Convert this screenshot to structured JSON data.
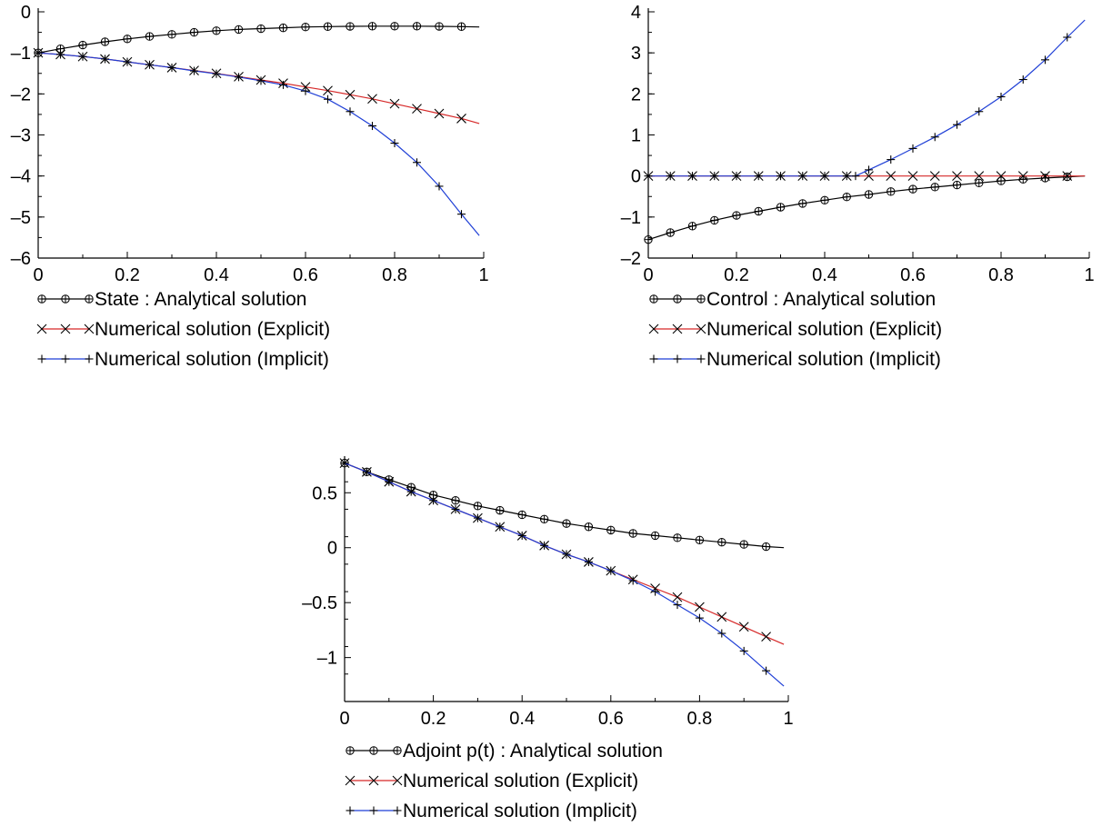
{
  "chart_data": [
    {
      "id": "state",
      "type": "line",
      "x_range": [
        0,
        1
      ],
      "y_range": [
        -6,
        0
      ],
      "x_ticks": [
        0,
        0.2,
        0.4,
        0.6,
        0.8,
        1
      ],
      "x_tick_labels": [
        "0",
        "0.2",
        "0.4",
        "0.6",
        "0.8",
        "1"
      ],
      "y_ticks": [
        -6,
        -5,
        -4,
        -3,
        -2,
        -1,
        0
      ],
      "y_tick_labels": [
        "–6",
        "–5",
        "–4",
        "–3",
        "–2",
        "–1",
        "0"
      ],
      "legend_position": "bottom",
      "series": [
        {
          "name": "State : Analytical solution",
          "color": "#000000",
          "marker": "circle-plus",
          "x": [
            0,
            0.05,
            0.1,
            0.15,
            0.2,
            0.25,
            0.3,
            0.35,
            0.4,
            0.45,
            0.5,
            0.55,
            0.6,
            0.65,
            0.7,
            0.75,
            0.8,
            0.85,
            0.9,
            0.95,
            0.99
          ],
          "y": [
            -1.0,
            -0.9,
            -0.81,
            -0.73,
            -0.66,
            -0.6,
            -0.55,
            -0.5,
            -0.46,
            -0.43,
            -0.41,
            -0.39,
            -0.37,
            -0.36,
            -0.355,
            -0.35,
            -0.35,
            -0.35,
            -0.355,
            -0.36,
            -0.37
          ]
        },
        {
          "name": "Numerical solution (Explicit)",
          "color": "#d62828",
          "marker": "x",
          "x": [
            0,
            0.05,
            0.1,
            0.15,
            0.2,
            0.25,
            0.3,
            0.35,
            0.4,
            0.45,
            0.5,
            0.55,
            0.6,
            0.65,
            0.7,
            0.75,
            0.8,
            0.85,
            0.9,
            0.95,
            0.99
          ],
          "y": [
            -1.0,
            -1.04,
            -1.09,
            -1.15,
            -1.22,
            -1.29,
            -1.36,
            -1.43,
            -1.5,
            -1.58,
            -1.66,
            -1.74,
            -1.83,
            -1.92,
            -2.02,
            -2.12,
            -2.24,
            -2.36,
            -2.48,
            -2.6,
            -2.72
          ]
        },
        {
          "name": "Numerical solution (Implicit)",
          "color": "#1f3fd6",
          "marker": "plus",
          "x": [
            0,
            0.05,
            0.1,
            0.15,
            0.2,
            0.25,
            0.3,
            0.35,
            0.4,
            0.45,
            0.5,
            0.55,
            0.6,
            0.65,
            0.7,
            0.75,
            0.8,
            0.85,
            0.9,
            0.95,
            0.99
          ],
          "y": [
            -1.0,
            -1.04,
            -1.09,
            -1.15,
            -1.22,
            -1.29,
            -1.36,
            -1.44,
            -1.51,
            -1.59,
            -1.68,
            -1.78,
            -1.93,
            -2.13,
            -2.43,
            -2.78,
            -3.2,
            -3.67,
            -4.25,
            -4.93,
            -5.45
          ]
        }
      ]
    },
    {
      "id": "control",
      "type": "line",
      "x_range": [
        0,
        1
      ],
      "y_range": [
        -2,
        4
      ],
      "x_ticks": [
        0,
        0.2,
        0.4,
        0.6,
        0.8,
        1
      ],
      "x_tick_labels": [
        "0",
        "0.2",
        "0.4",
        "0.6",
        "0.8",
        "1"
      ],
      "y_ticks": [
        -2,
        -1,
        0,
        1,
        2,
        3,
        4
      ],
      "y_tick_labels": [
        "–2",
        "–1",
        "0",
        "1",
        "2",
        "3",
        "4"
      ],
      "legend_position": "bottom",
      "series": [
        {
          "name": "Control : Analytical solution",
          "color": "#000000",
          "marker": "circle-plus",
          "x": [
            0,
            0.05,
            0.1,
            0.15,
            0.2,
            0.25,
            0.3,
            0.35,
            0.4,
            0.45,
            0.5,
            0.55,
            0.6,
            0.65,
            0.7,
            0.75,
            0.8,
            0.85,
            0.9,
            0.95,
            0.99
          ],
          "y": [
            -1.55,
            -1.38,
            -1.22,
            -1.08,
            -0.96,
            -0.86,
            -0.76,
            -0.67,
            -0.59,
            -0.51,
            -0.45,
            -0.38,
            -0.32,
            -0.27,
            -0.22,
            -0.17,
            -0.12,
            -0.08,
            -0.05,
            -0.02,
            0.0
          ]
        },
        {
          "name": "Numerical solution (Explicit)",
          "color": "#d62828",
          "marker": "x",
          "x": [
            0,
            0.05,
            0.1,
            0.15,
            0.2,
            0.25,
            0.3,
            0.35,
            0.4,
            0.45,
            0.5,
            0.55,
            0.6,
            0.65,
            0.7,
            0.75,
            0.8,
            0.85,
            0.9,
            0.95,
            0.99
          ],
          "y": [
            0,
            0,
            0,
            0,
            0,
            0,
            0,
            0,
            0,
            0,
            0,
            0,
            0,
            0,
            0,
            0,
            0,
            0,
            0,
            0,
            0
          ]
        },
        {
          "name": "Numerical solution (Implicit)",
          "color": "#1f3fd6",
          "marker": "plus",
          "x": [
            0,
            0.05,
            0.1,
            0.15,
            0.2,
            0.25,
            0.3,
            0.35,
            0.4,
            0.45,
            0.47,
            0.5,
            0.55,
            0.6,
            0.65,
            0.7,
            0.75,
            0.8,
            0.85,
            0.9,
            0.95,
            0.99
          ],
          "y": [
            0,
            0,
            0,
            0,
            0,
            0,
            0,
            0,
            0,
            0,
            0,
            0.15,
            0.4,
            0.67,
            0.95,
            1.25,
            1.57,
            1.93,
            2.35,
            2.83,
            3.38,
            3.8
          ]
        }
      ]
    },
    {
      "id": "adjoint",
      "type": "line",
      "x_range": [
        0,
        1
      ],
      "y_range": [
        -1.4,
        0.8
      ],
      "x_ticks": [
        0,
        0.2,
        0.4,
        0.6,
        0.8,
        1
      ],
      "x_tick_labels": [
        "0",
        "0.2",
        "0.4",
        "0.6",
        "0.8",
        "1"
      ],
      "y_ticks": [
        -1,
        -0.5,
        0,
        0.5
      ],
      "y_tick_labels": [
        "–1",
        "–0.5",
        "0",
        "0.5"
      ],
      "legend_position": "bottom",
      "series": [
        {
          "name": "Adjoint p(t) : Analytical solution",
          "color": "#000000",
          "marker": "circle-plus",
          "x": [
            0,
            0.05,
            0.1,
            0.15,
            0.2,
            0.25,
            0.3,
            0.35,
            0.4,
            0.45,
            0.5,
            0.55,
            0.6,
            0.65,
            0.7,
            0.75,
            0.8,
            0.85,
            0.9,
            0.95,
            0.99
          ],
          "y": [
            0.77,
            0.69,
            0.62,
            0.55,
            0.48,
            0.43,
            0.38,
            0.34,
            0.3,
            0.26,
            0.22,
            0.19,
            0.16,
            0.13,
            0.11,
            0.09,
            0.07,
            0.05,
            0.03,
            0.01,
            0.0
          ]
        },
        {
          "name": "Numerical solution (Explicit)",
          "color": "#d62828",
          "marker": "x",
          "x": [
            0,
            0.05,
            0.1,
            0.15,
            0.2,
            0.25,
            0.3,
            0.35,
            0.4,
            0.45,
            0.5,
            0.55,
            0.6,
            0.65,
            0.7,
            0.75,
            0.8,
            0.85,
            0.9,
            0.95,
            0.99
          ],
          "y": [
            0.77,
            0.69,
            0.6,
            0.51,
            0.43,
            0.35,
            0.27,
            0.19,
            0.11,
            0.02,
            -0.06,
            -0.13,
            -0.21,
            -0.29,
            -0.37,
            -0.45,
            -0.54,
            -0.63,
            -0.72,
            -0.81,
            -0.88
          ]
        },
        {
          "name": "Numerical solution (Implicit)",
          "color": "#1f3fd6",
          "marker": "plus",
          "x": [
            0,
            0.05,
            0.1,
            0.15,
            0.2,
            0.25,
            0.3,
            0.35,
            0.4,
            0.45,
            0.5,
            0.55,
            0.6,
            0.65,
            0.7,
            0.75,
            0.8,
            0.85,
            0.9,
            0.95,
            0.99
          ],
          "y": [
            0.77,
            0.69,
            0.6,
            0.51,
            0.43,
            0.35,
            0.27,
            0.19,
            0.11,
            0.02,
            -0.06,
            -0.13,
            -0.21,
            -0.3,
            -0.4,
            -0.52,
            -0.64,
            -0.78,
            -0.94,
            -1.12,
            -1.26
          ]
        }
      ]
    }
  ]
}
